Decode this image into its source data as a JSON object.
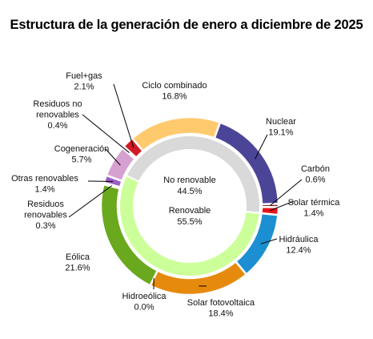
{
  "chart_data": {
    "type": "pie",
    "title": "Estructura de la generación de enero a diciembre de 2025",
    "outer_ring": [
      {
        "name": "Nuclear",
        "value": 19.1,
        "label": "19.1%",
        "color": "#4b4597"
      },
      {
        "name": "Carbón",
        "value": 0.6,
        "label": "0.6%",
        "color": "#7a1c1c"
      },
      {
        "name": "Solar térmica",
        "value": 1.4,
        "label": "1.4%",
        "color": "#e8131a"
      },
      {
        "name": "Hidráulica",
        "value": 12.4,
        "label": "12.4%",
        "color": "#1b8fd1"
      },
      {
        "name": "Solar fotovoltaica",
        "value": 18.4,
        "label": "18.4%",
        "color": "#e68a0e"
      },
      {
        "name": "Hidroeólica",
        "value": 0.0,
        "label": "0.0%",
        "color": "#4a90b8"
      },
      {
        "name": "Eólica",
        "value": 21.6,
        "label": "21.6%",
        "color": "#6aa81e"
      },
      {
        "name": "Residuos renovables",
        "value": 0.3,
        "label": "0.3%",
        "color": "#4b1d4f"
      },
      {
        "name": "Otras renovables",
        "value": 1.4,
        "label": "1.4%",
        "color": "#9b5dc9"
      },
      {
        "name": "Cogeneración",
        "value": 5.7,
        "label": "5.7%",
        "color": "#d6a1d0"
      },
      {
        "name": "Residuos no renovables",
        "value": 0.4,
        "label": "0.4%",
        "color": "#8a5a3c"
      },
      {
        "name": "Fuel+gas",
        "value": 2.1,
        "label": "2.1%",
        "color": "#d21b27"
      },
      {
        "name": "Ciclo combinado",
        "value": 16.8,
        "label": "16.8%",
        "color": "#ffc96e"
      }
    ],
    "inner_ring": [
      {
        "name": "No renovable",
        "value": 44.5,
        "label": "44.5%",
        "color": "#d9d9d9"
      },
      {
        "name": "Renovable",
        "value": 55.5,
        "label": "55.5%",
        "color": "#ccff99"
      }
    ]
  }
}
